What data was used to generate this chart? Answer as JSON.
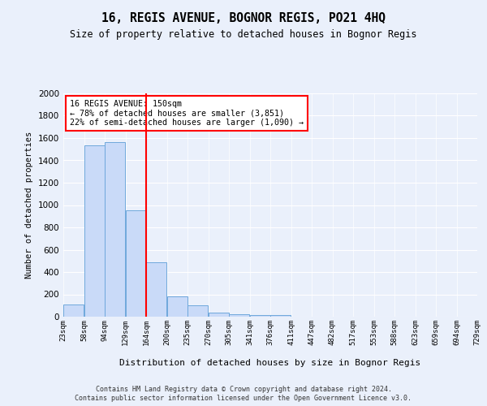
{
  "title": "16, REGIS AVENUE, BOGNOR REGIS, PO21 4HQ",
  "subtitle": "Size of property relative to detached houses in Bognor Regis",
  "xlabel": "Distribution of detached houses by size in Bognor Regis",
  "ylabel": "Number of detached properties",
  "bar_values": [
    110,
    1535,
    1565,
    950,
    490,
    185,
    100,
    40,
    25,
    15,
    15,
    0,
    0,
    0,
    0,
    0,
    0,
    0,
    0,
    0
  ],
  "categories": [
    "23sqm",
    "58sqm",
    "94sqm",
    "129sqm",
    "164sqm",
    "200sqm",
    "235sqm",
    "270sqm",
    "305sqm",
    "341sqm",
    "376sqm",
    "411sqm",
    "447sqm",
    "482sqm",
    "517sqm",
    "553sqm",
    "588sqm",
    "623sqm",
    "659sqm",
    "694sqm",
    "729sqm"
  ],
  "bar_color": "#c9daf8",
  "bar_edge_color": "#6fa8dc",
  "vline_x": 3.5,
  "vline_color": "red",
  "annotation_text": "16 REGIS AVENUE: 150sqm\n← 78% of detached houses are smaller (3,851)\n22% of semi-detached houses are larger (1,090) →",
  "annotation_box_color": "white",
  "annotation_box_edge": "red",
  "ylim": [
    0,
    2000
  ],
  "yticks": [
    0,
    200,
    400,
    600,
    800,
    1000,
    1200,
    1400,
    1600,
    1800,
    2000
  ],
  "footer": "Contains HM Land Registry data © Crown copyright and database right 2024.\nContains public sector information licensed under the Open Government Licence v3.0.",
  "background_color": "#eaf0fb",
  "plot_bg_color": "#eaf0fb"
}
